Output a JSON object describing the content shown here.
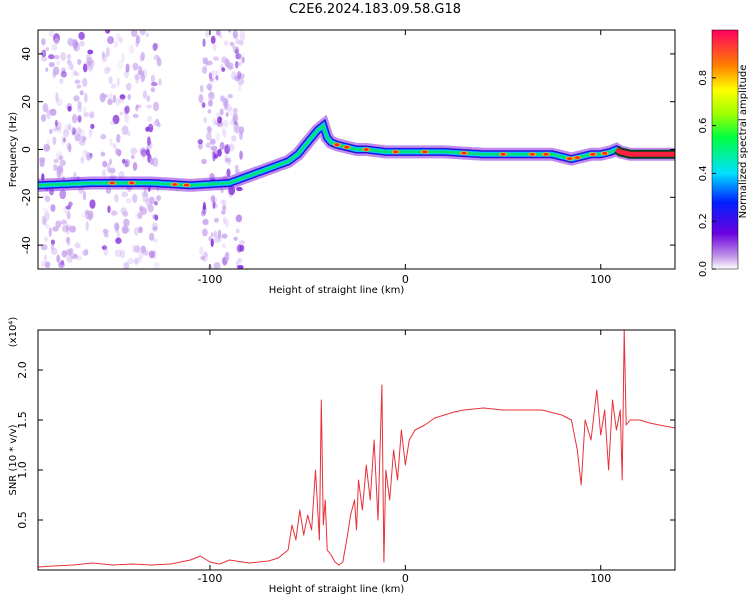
{
  "title": "C2E6.2024.183.09.58.G18",
  "chart_data": [
    {
      "type": "heatmap",
      "xlabel": "Height of straight line (km)",
      "ylabel": "Frequency (Hz)",
      "xlim": [
        -188,
        138
      ],
      "ylim": [
        -50,
        50
      ],
      "x_ticks": [
        -100,
        0,
        100
      ],
      "y_ticks": [
        -40,
        -20,
        0,
        20,
        40
      ],
      "colorbar": {
        "label": "Normalized spectral amplitude",
        "range": [
          0,
          1
        ],
        "ticks": [
          0.0,
          0.2,
          0.4,
          0.6,
          0.8
        ]
      },
      "ridge": {
        "x": [
          -188,
          -160,
          -130,
          -110,
          -90,
          -80,
          -70,
          -60,
          -55,
          -50,
          -45,
          -42,
          -40,
          -38,
          -35,
          -30,
          -25,
          -20,
          -10,
          0,
          20,
          40,
          60,
          75,
          80,
          85,
          90,
          95,
          100,
          105,
          108,
          110,
          115,
          125,
          138
        ],
        "y": [
          -15,
          -14,
          -14,
          -15,
          -14,
          -11,
          -8,
          -5,
          -2,
          3,
          8,
          10,
          5,
          3,
          2,
          1,
          0,
          0,
          -1,
          -1,
          -1,
          -2,
          -2,
          -2,
          -3,
          -4,
          -3,
          -2,
          -2,
          -1,
          0,
          -1,
          -2,
          -2,
          -2
        ]
      }
    },
    {
      "type": "line",
      "xlabel": "Height of straight line (km)",
      "ylabel": "SNR (10 * v/v)",
      "y_multiplier": "(x10⁴)",
      "xlim": [
        -188,
        138
      ],
      "ylim": [
        0,
        2.4
      ],
      "x_ticks": [
        -100,
        0,
        100
      ],
      "y_ticks": [
        0.5,
        1.0,
        1.5,
        2.0
      ],
      "series": [
        {
          "color": "#e8303a",
          "x": [
            -188,
            -180,
            -170,
            -160,
            -150,
            -140,
            -130,
            -120,
            -110,
            -105,
            -100,
            -95,
            -90,
            -80,
            -70,
            -65,
            -60,
            -58,
            -56,
            -54,
            -52,
            -50,
            -48,
            -46,
            -44,
            -43,
            -42,
            -41,
            -40,
            -38,
            -36,
            -34,
            -32,
            -30,
            -28,
            -26,
            -25,
            -24,
            -22,
            -20,
            -18,
            -16,
            -14,
            -12,
            -11,
            -10,
            -8,
            -6,
            -4,
            -2,
            0,
            2,
            5,
            10,
            15,
            20,
            25,
            30,
            40,
            50,
            60,
            70,
            80,
            85,
            88,
            90,
            92,
            95,
            98,
            100,
            102,
            104,
            106,
            108,
            110,
            111,
            112,
            113,
            115,
            120,
            125,
            130,
            138
          ],
          "y": [
            0.03,
            0.04,
            0.05,
            0.07,
            0.05,
            0.06,
            0.05,
            0.06,
            0.1,
            0.14,
            0.08,
            0.06,
            0.1,
            0.07,
            0.09,
            0.12,
            0.2,
            0.45,
            0.3,
            0.6,
            0.35,
            0.55,
            0.4,
            1.0,
            0.3,
            1.7,
            0.45,
            0.7,
            0.2,
            0.15,
            0.08,
            0.05,
            0.08,
            0.3,
            0.55,
            0.7,
            0.4,
            0.9,
            0.6,
            1.05,
            0.7,
            1.3,
            0.5,
            1.85,
            0.08,
            1.0,
            0.7,
            1.2,
            0.9,
            1.4,
            1.05,
            1.3,
            1.4,
            1.45,
            1.52,
            1.55,
            1.58,
            1.6,
            1.62,
            1.6,
            1.6,
            1.6,
            1.55,
            1.5,
            1.2,
            0.85,
            1.5,
            1.3,
            1.8,
            1.35,
            1.6,
            1.0,
            1.7,
            1.4,
            1.6,
            0.9,
            2.4,
            1.45,
            1.5,
            1.5,
            1.47,
            1.45,
            1.42
          ]
        }
      ]
    }
  ]
}
